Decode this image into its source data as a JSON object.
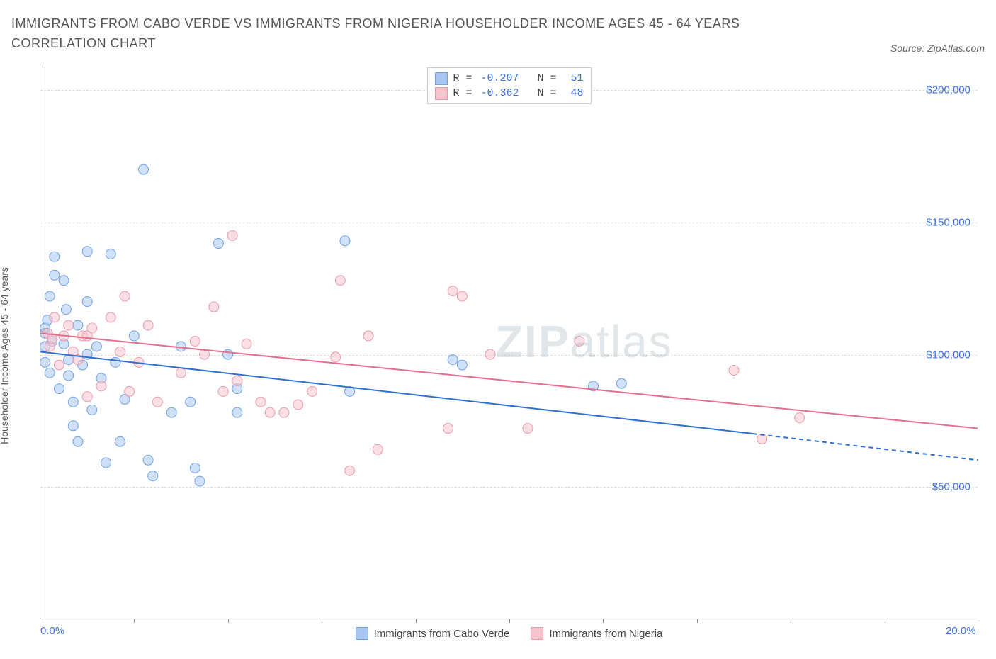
{
  "title": "IMMIGRANTS FROM CABO VERDE VS IMMIGRANTS FROM NIGERIA HOUSEHOLDER INCOME AGES 45 - 64 YEARS CORRELATION CHART",
  "source": "Source: ZipAtlas.com",
  "yaxis_label": "Householder Income Ages 45 - 64 years",
  "watermark_zip": "ZIP",
  "watermark_atlas": "atlas",
  "chart": {
    "type": "scatter",
    "xlim": [
      0,
      20
    ],
    "ylim": [
      0,
      210000
    ],
    "x_unit": "%",
    "y_unit": "$",
    "xticks_minor": [
      2,
      4,
      6,
      8,
      10,
      12,
      14,
      16,
      18
    ],
    "xticks_labeled": [
      {
        "v": 0,
        "label": "0.0%"
      },
      {
        "v": 20,
        "label": "20.0%"
      }
    ],
    "yticks": [
      {
        "v": 50000,
        "label": "$50,000"
      },
      {
        "v": 100000,
        "label": "$100,000"
      },
      {
        "v": 150000,
        "label": "$150,000"
      },
      {
        "v": 200000,
        "label": "$200,000"
      }
    ],
    "grid_color": "#dddddd",
    "axis_color": "#888888",
    "background_color": "#ffffff",
    "marker_radius": 7,
    "marker_opacity": 0.55,
    "line_width": 2,
    "series": [
      {
        "name": "Immigrants from Cabo Verde",
        "fill_color": "#a9c6ef",
        "stroke_color": "#6fa1e2",
        "line_color": "#2f6fd0",
        "R": "-0.207",
        "N": "51",
        "trend": {
          "x1": 0,
          "y1": 101000,
          "x2_solid": 15.2,
          "y2_solid": 70000,
          "x2_dash": 20,
          "y2_dash": 60000
        },
        "points": [
          [
            0.1,
            108000
          ],
          [
            0.1,
            103000
          ],
          [
            0.1,
            97000
          ],
          [
            0.1,
            110000
          ],
          [
            0.15,
            113000
          ],
          [
            0.2,
            93000
          ],
          [
            0.2,
            122000
          ],
          [
            0.25,
            105000
          ],
          [
            0.3,
            137000
          ],
          [
            0.3,
            130000
          ],
          [
            0.4,
            87000
          ],
          [
            0.5,
            128000
          ],
          [
            0.5,
            104000
          ],
          [
            0.55,
            117000
          ],
          [
            0.6,
            98000
          ],
          [
            0.6,
            92000
          ],
          [
            0.7,
            73000
          ],
          [
            0.7,
            82000
          ],
          [
            0.8,
            111000
          ],
          [
            0.8,
            67000
          ],
          [
            1.0,
            139000
          ],
          [
            1.0,
            120000
          ],
          [
            1.0,
            100000
          ],
          [
            1.1,
            79000
          ],
          [
            1.2,
            103000
          ],
          [
            1.3,
            91000
          ],
          [
            1.4,
            59000
          ],
          [
            1.5,
            138000
          ],
          [
            1.6,
            97000
          ],
          [
            1.7,
            67000
          ],
          [
            2.0,
            107000
          ],
          [
            2.2,
            170000
          ],
          [
            2.3,
            60000
          ],
          [
            2.4,
            54000
          ],
          [
            2.8,
            78000
          ],
          [
            3.0,
            103000
          ],
          [
            3.2,
            82000
          ],
          [
            3.3,
            57000
          ],
          [
            3.4,
            52000
          ],
          [
            3.8,
            142000
          ],
          [
            4.0,
            100000
          ],
          [
            4.2,
            87000
          ],
          [
            4.2,
            78000
          ],
          [
            6.5,
            143000
          ],
          [
            6.6,
            86000
          ],
          [
            8.8,
            98000
          ],
          [
            9.0,
            96000
          ],
          [
            11.8,
            88000
          ],
          [
            12.4,
            89000
          ],
          [
            0.9,
            96000
          ],
          [
            1.8,
            83000
          ]
        ]
      },
      {
        "name": "Immigrants from Nigeria",
        "fill_color": "#f6c4cd",
        "stroke_color": "#e99aaa",
        "line_color": "#e46e8d",
        "R": "-0.362",
        "N": "48",
        "trend": {
          "x1": 0,
          "y1": 108000,
          "x2_solid": 20,
          "y2_solid": 72000,
          "x2_dash": 20,
          "y2_dash": 72000
        },
        "points": [
          [
            0.15,
            108000
          ],
          [
            0.2,
            103000
          ],
          [
            0.25,
            106000
          ],
          [
            0.3,
            114000
          ],
          [
            0.4,
            96000
          ],
          [
            0.5,
            107000
          ],
          [
            0.6,
            111000
          ],
          [
            0.7,
            101000
          ],
          [
            0.8,
            98000
          ],
          [
            0.9,
            107000
          ],
          [
            1.0,
            107000
          ],
          [
            1.0,
            84000
          ],
          [
            1.1,
            110000
          ],
          [
            1.3,
            88000
          ],
          [
            1.5,
            114000
          ],
          [
            1.7,
            101000
          ],
          [
            1.8,
            122000
          ],
          [
            1.9,
            86000
          ],
          [
            2.1,
            97000
          ],
          [
            2.3,
            111000
          ],
          [
            2.5,
            82000
          ],
          [
            3.0,
            93000
          ],
          [
            3.3,
            105000
          ],
          [
            3.5,
            100000
          ],
          [
            3.7,
            118000
          ],
          [
            3.9,
            86000
          ],
          [
            4.1,
            145000
          ],
          [
            4.2,
            90000
          ],
          [
            4.4,
            104000
          ],
          [
            4.7,
            82000
          ],
          [
            5.2,
            78000
          ],
          [
            5.5,
            81000
          ],
          [
            6.3,
            99000
          ],
          [
            6.4,
            128000
          ],
          [
            6.6,
            56000
          ],
          [
            7.0,
            107000
          ],
          [
            7.2,
            64000
          ],
          [
            8.7,
            72000
          ],
          [
            8.8,
            124000
          ],
          [
            9.0,
            122000
          ],
          [
            9.6,
            100000
          ],
          [
            10.4,
            72000
          ],
          [
            11.5,
            105000
          ],
          [
            14.8,
            94000
          ],
          [
            15.4,
            68000
          ],
          [
            16.2,
            76000
          ],
          [
            4.9,
            78000
          ],
          [
            5.8,
            86000
          ]
        ]
      }
    ]
  },
  "legend_top_labels": {
    "R": "R =",
    "N": "N ="
  }
}
